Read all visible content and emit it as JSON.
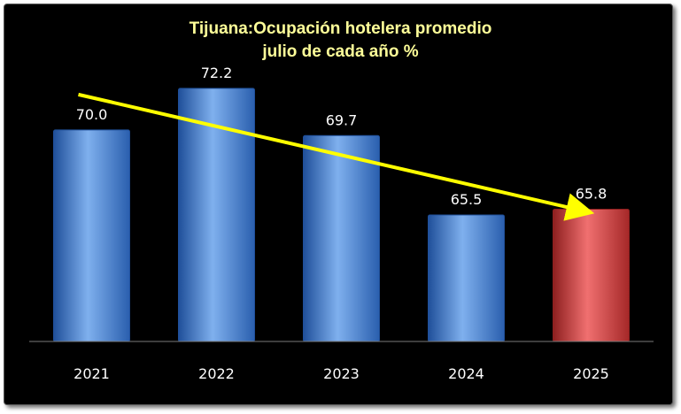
{
  "chart_data": {
    "type": "bar",
    "title": "Tijuana:Ocupación hotelera promedio",
    "subtitle": "julio de cada año %",
    "categories": [
      "2021",
      "2022",
      "2023",
      "2024",
      "2025"
    ],
    "values": [
      70.0,
      72.2,
      69.7,
      65.5,
      65.8
    ],
    "value_labels": [
      "70.0",
      "72.2",
      "69.7",
      "65.5",
      "65.8"
    ],
    "ylim": [
      58.8,
      73.6
    ],
    "grid": false,
    "legend": "none",
    "highlight_index": 4,
    "trend_line": true,
    "colors": {
      "bar": "#3f7fd4",
      "bar_light": "#7fb0ee",
      "bar_dark": "#1f4f9a",
      "highlight": "#d03838",
      "highlight_light": "#f07070",
      "highlight_dark": "#8e1f1f",
      "trend": "#ffff00",
      "title": "#ffff99"
    }
  }
}
